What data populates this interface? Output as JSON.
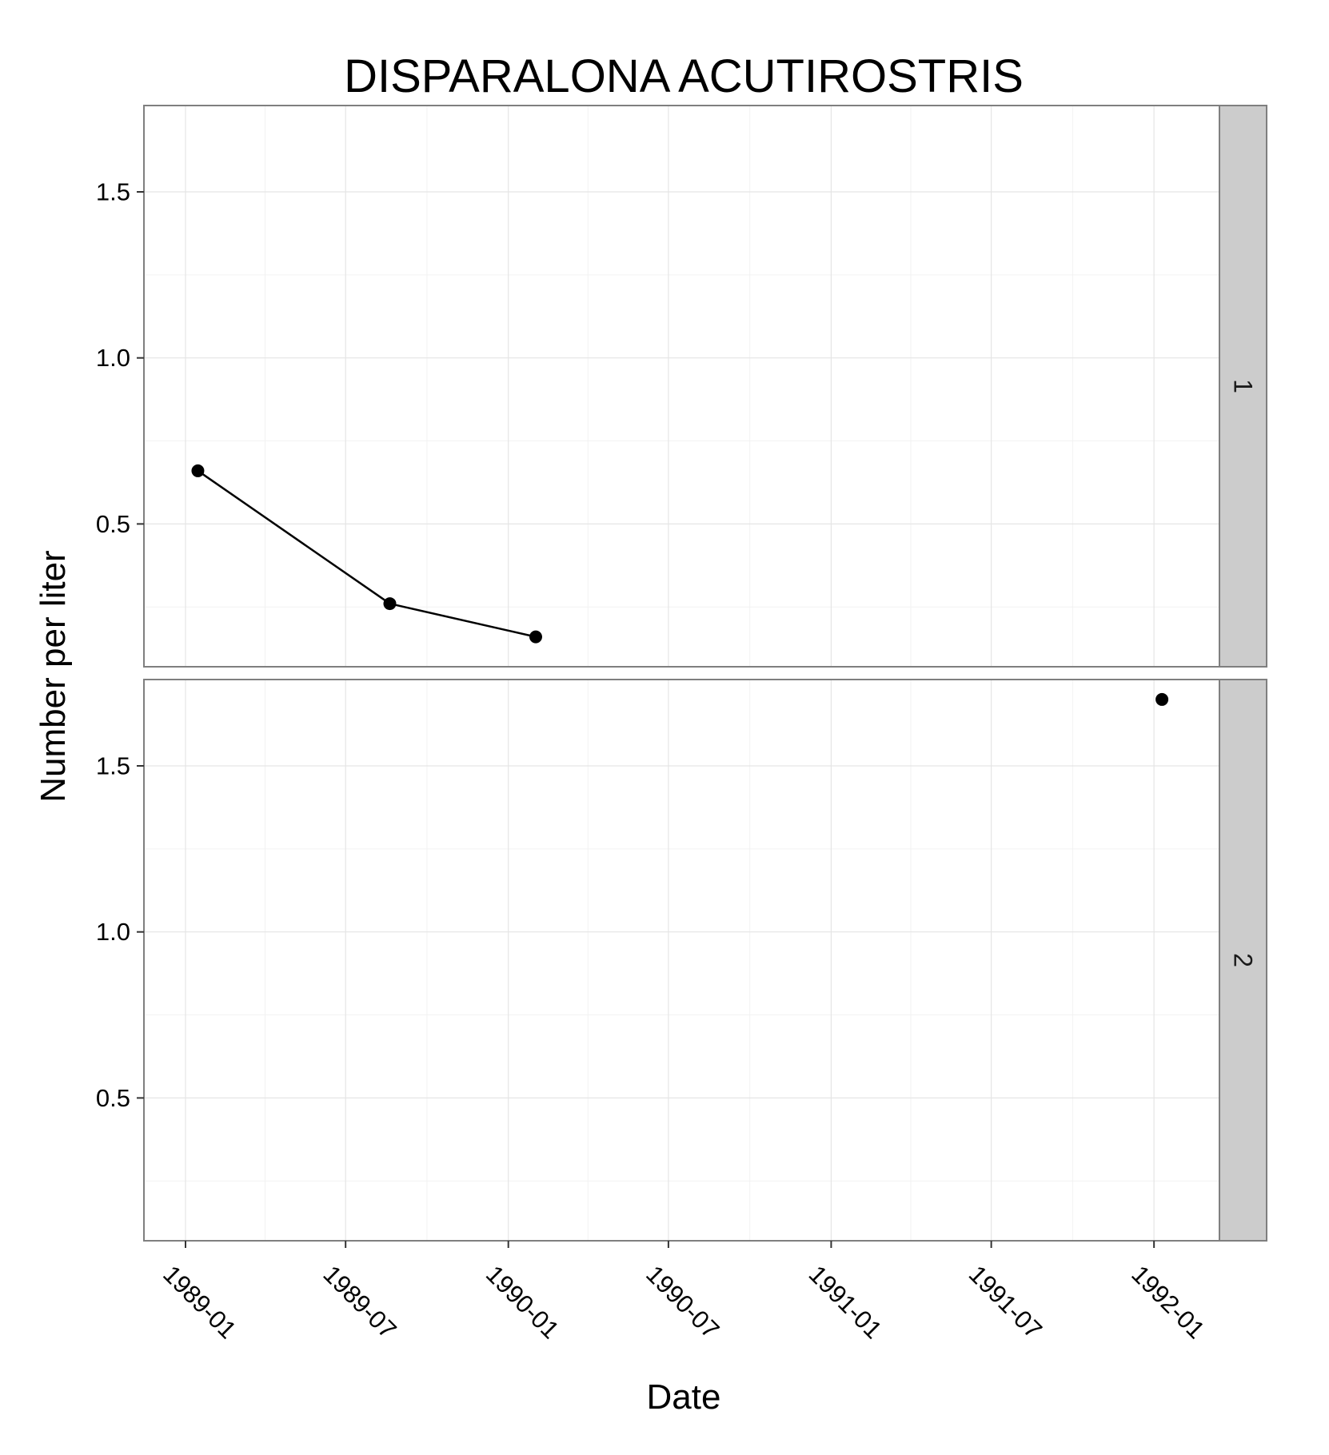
{
  "chart_data": {
    "type": "line",
    "title": "DISPARALONA ACUTIROSTRIS",
    "xlabel": "Date",
    "ylabel": "Number per liter",
    "x_type": "date",
    "xlim": [
      "1988-11-15",
      "1992-03-15"
    ],
    "ylim": [
      0.07,
      1.76
    ],
    "x_ticks": [
      "1989-01-01",
      "1989-07-01",
      "1990-01-01",
      "1990-07-01",
      "1991-01-01",
      "1991-07-01",
      "1992-01-01"
    ],
    "x_tick_labels": [
      "1989-01",
      "1989-07",
      "1990-01",
      "1990-07",
      "1991-01",
      "1991-07",
      "1992-01"
    ],
    "y_ticks": [
      0.5,
      1.0,
      1.5
    ],
    "y_tick_labels": [
      "0.5",
      "1.0",
      "1.5"
    ],
    "grid": true,
    "facets": [
      {
        "strip_label": "1",
        "series": [
          {
            "x": [
              "1989-01-15",
              "1989-08-20",
              "1990-02-01"
            ],
            "y": [
              0.66,
              0.26,
              0.16
            ]
          }
        ]
      },
      {
        "strip_label": "2",
        "series": [
          {
            "x": [
              "1992-01-10"
            ],
            "y": [
              1.7
            ]
          }
        ]
      }
    ]
  }
}
